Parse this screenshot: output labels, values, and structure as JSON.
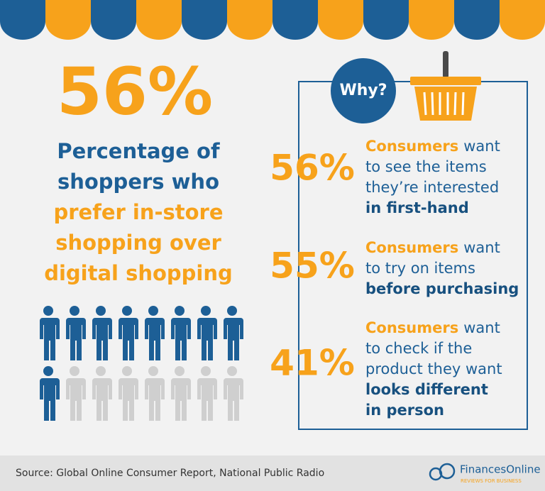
{
  "headline": {
    "stat": "56%",
    "description": {
      "plain": [
        "Percentage of",
        "shoppers who"
      ],
      "highlight": [
        "prefer in-store",
        "shopping over",
        "digital shopping"
      ]
    }
  },
  "why": {
    "label": "Why?",
    "reasons": [
      {
        "stat": "56%",
        "highlight": "Consumers",
        "text": [
          "want",
          "to see the items",
          "they’re interested"
        ],
        "bold": [
          "in first-hand"
        ]
      },
      {
        "stat": "55%",
        "highlight": "Consumers",
        "text": [
          "want",
          "to try on items"
        ],
        "bold": [
          "before purchasing"
        ]
      },
      {
        "stat": "41%",
        "highlight": "Consumers",
        "text": [
          "want",
          "to check if the",
          "product they want"
        ],
        "bold": [
          "looks different",
          "in person"
        ]
      }
    ]
  },
  "footer": {
    "source": "Source: Global Online Consumer Report, National Public Radio",
    "brand": "FinancesOnline",
    "tagline": "REVIEWS FOR BUSINESS"
  }
}
